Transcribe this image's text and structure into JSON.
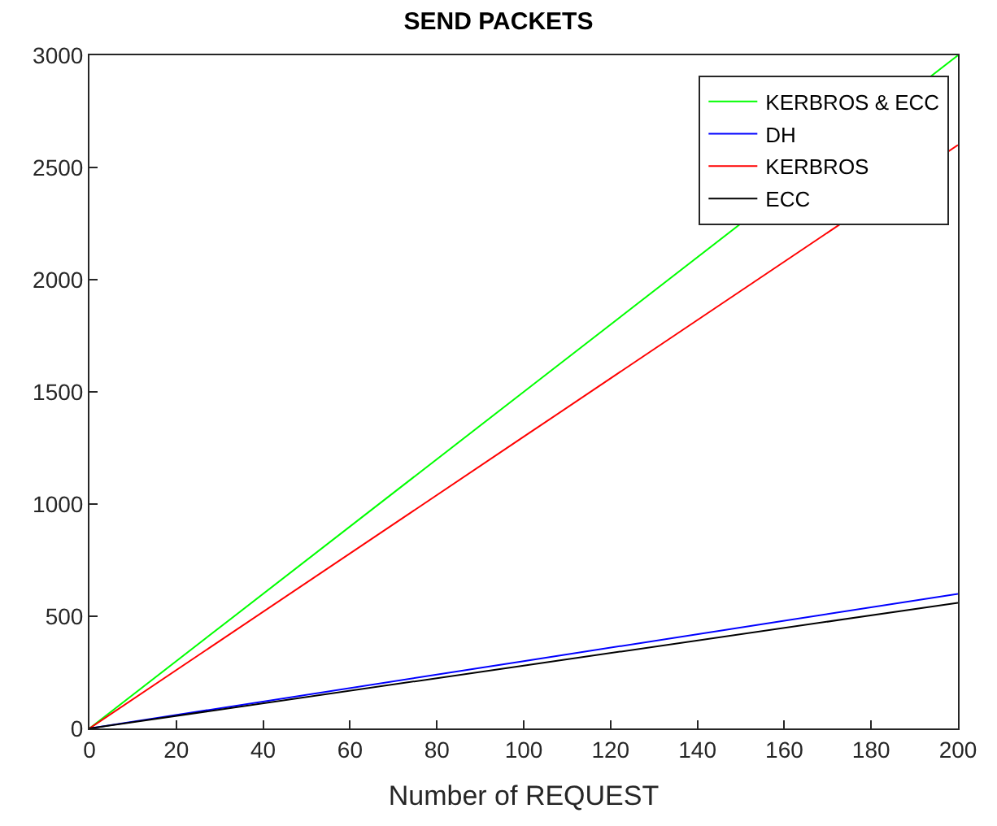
{
  "chart_data": {
    "type": "line",
    "title": "SEND PACKETS",
    "xlabel": "Number of REQUEST",
    "x": [
      0,
      100,
      200
    ],
    "series": [
      {
        "name": "KERBROS & ECC",
        "color": "#00ff00",
        "values": [
          0,
          1500,
          3000
        ]
      },
      {
        "name": "DH",
        "color": "#0000ff",
        "values": [
          0,
          300,
          600
        ]
      },
      {
        "name": "KERBROS",
        "color": "#ff0000",
        "values": [
          0,
          1300,
          2600
        ]
      },
      {
        "name": "ECC",
        "color": "#000000",
        "values": [
          0,
          280,
          560
        ]
      }
    ],
    "xlim": [
      0,
      200
    ],
    "xticks": [
      0,
      20,
      40,
      60,
      80,
      100,
      120,
      140,
      160,
      180,
      200
    ],
    "ylim": [
      0,
      3000
    ],
    "yticks": [
      0,
      500,
      1000,
      1500,
      2000,
      2500,
      3000
    ],
    "legend": "top right",
    "marker": "none",
    "line_style": "solid"
  }
}
